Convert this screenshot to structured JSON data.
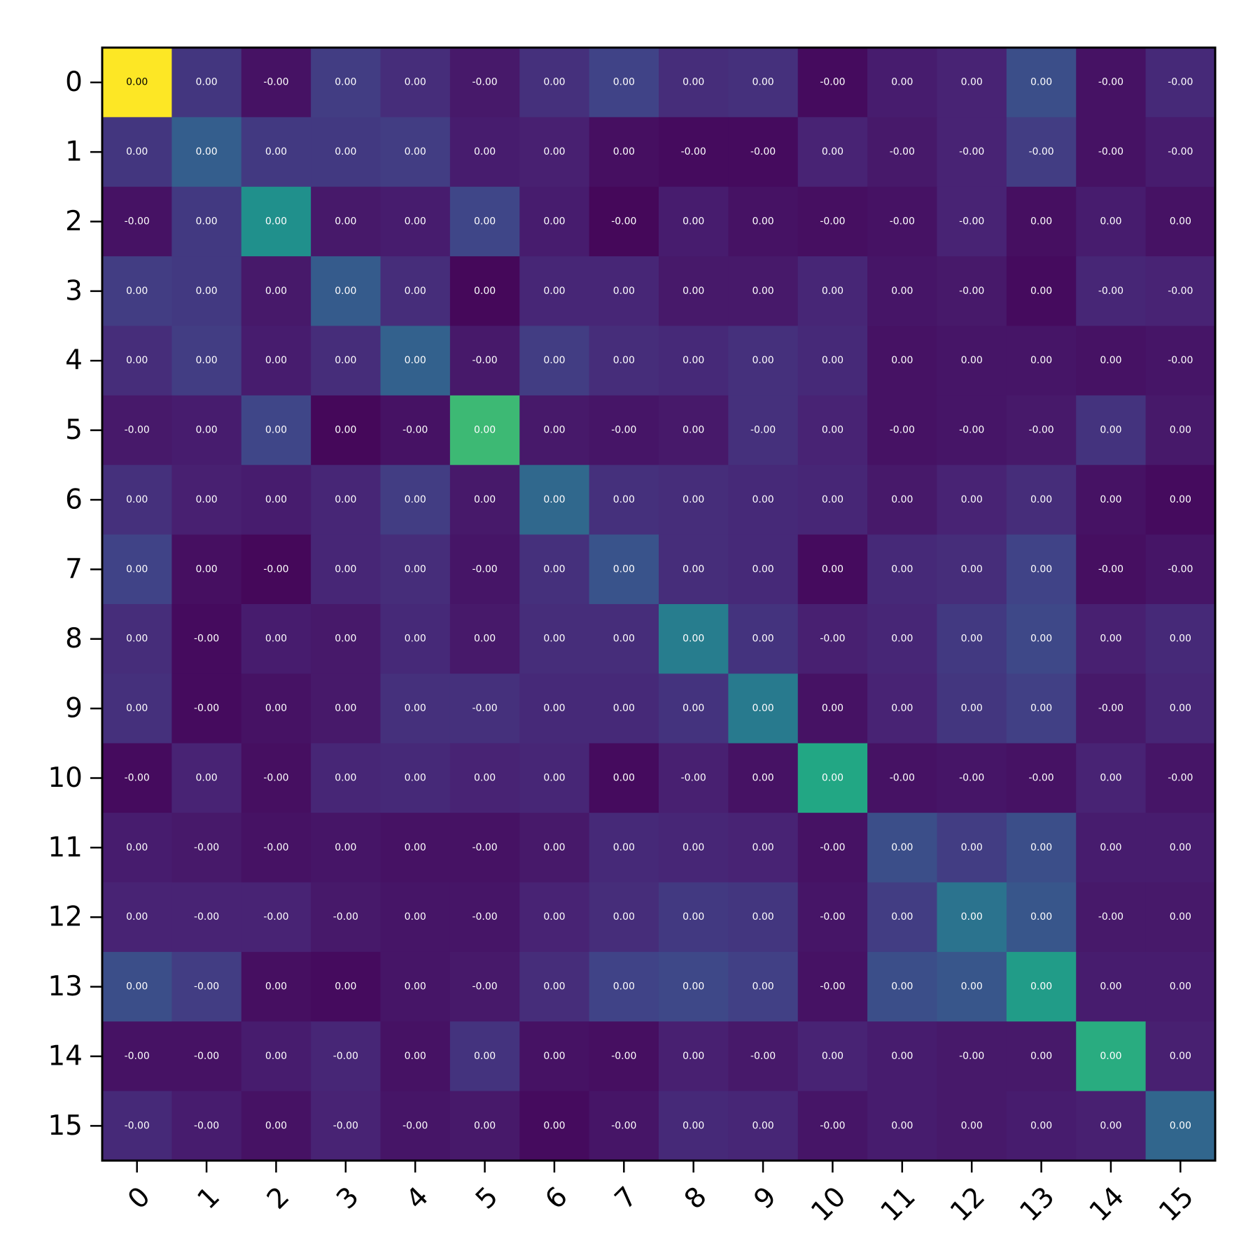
{
  "chart_data": {
    "type": "heatmap",
    "colormap": "viridis",
    "title": "",
    "xlabel": "",
    "ylabel": "",
    "x_ticks": [
      "0",
      "1",
      "2",
      "3",
      "4",
      "5",
      "6",
      "7",
      "8",
      "9",
      "10",
      "11",
      "12",
      "13",
      "14",
      "15"
    ],
    "y_ticks": [
      "0",
      "1",
      "2",
      "3",
      "4",
      "5",
      "6",
      "7",
      "8",
      "9",
      "10",
      "11",
      "12",
      "13",
      "14",
      "15"
    ],
    "color_range": [
      0,
      1
    ],
    "color_intensity": [
      [
        1.0,
        0.16,
        0.05,
        0.18,
        0.13,
        0.07,
        0.14,
        0.2,
        0.13,
        0.14,
        0.03,
        0.08,
        0.1,
        0.24,
        0.05,
        0.12
      ],
      [
        0.16,
        0.3,
        0.17,
        0.17,
        0.18,
        0.08,
        0.09,
        0.04,
        0.03,
        0.03,
        0.1,
        0.07,
        0.1,
        0.18,
        0.05,
        0.08
      ],
      [
        0.05,
        0.17,
        0.5,
        0.07,
        0.08,
        0.21,
        0.08,
        0.02,
        0.08,
        0.05,
        0.04,
        0.05,
        0.1,
        0.04,
        0.08,
        0.05
      ],
      [
        0.18,
        0.17,
        0.07,
        0.29,
        0.13,
        0.02,
        0.11,
        0.11,
        0.07,
        0.07,
        0.11,
        0.06,
        0.07,
        0.03,
        0.11,
        0.1
      ],
      [
        0.13,
        0.18,
        0.08,
        0.13,
        0.31,
        0.07,
        0.18,
        0.13,
        0.12,
        0.14,
        0.12,
        0.05,
        0.06,
        0.06,
        0.05,
        0.06
      ],
      [
        0.07,
        0.08,
        0.21,
        0.02,
        0.05,
        0.68,
        0.07,
        0.06,
        0.07,
        0.14,
        0.1,
        0.05,
        0.06,
        0.07,
        0.15,
        0.07
      ],
      [
        0.14,
        0.09,
        0.08,
        0.11,
        0.18,
        0.07,
        0.34,
        0.14,
        0.13,
        0.12,
        0.11,
        0.07,
        0.1,
        0.13,
        0.05,
        0.03
      ],
      [
        0.2,
        0.04,
        0.02,
        0.11,
        0.13,
        0.06,
        0.14,
        0.26,
        0.13,
        0.12,
        0.03,
        0.12,
        0.13,
        0.2,
        0.04,
        0.06
      ],
      [
        0.13,
        0.03,
        0.08,
        0.07,
        0.12,
        0.07,
        0.13,
        0.13,
        0.42,
        0.15,
        0.09,
        0.11,
        0.17,
        0.22,
        0.09,
        0.12
      ],
      [
        0.14,
        0.03,
        0.05,
        0.07,
        0.14,
        0.14,
        0.12,
        0.12,
        0.15,
        0.41,
        0.05,
        0.1,
        0.16,
        0.19,
        0.07,
        0.11
      ],
      [
        0.03,
        0.1,
        0.04,
        0.11,
        0.12,
        0.1,
        0.11,
        0.03,
        0.09,
        0.05,
        0.6,
        0.05,
        0.06,
        0.05,
        0.1,
        0.06
      ],
      [
        0.08,
        0.07,
        0.05,
        0.06,
        0.05,
        0.05,
        0.07,
        0.12,
        0.11,
        0.1,
        0.05,
        0.24,
        0.18,
        0.24,
        0.08,
        0.08
      ],
      [
        0.1,
        0.1,
        0.1,
        0.07,
        0.06,
        0.06,
        0.1,
        0.13,
        0.17,
        0.16,
        0.06,
        0.18,
        0.38,
        0.27,
        0.07,
        0.07
      ],
      [
        0.24,
        0.18,
        0.04,
        0.03,
        0.06,
        0.07,
        0.13,
        0.2,
        0.22,
        0.19,
        0.05,
        0.24,
        0.27,
        0.55,
        0.08,
        0.08
      ],
      [
        0.05,
        0.05,
        0.08,
        0.11,
        0.05,
        0.15,
        0.05,
        0.04,
        0.09,
        0.07,
        0.1,
        0.08,
        0.07,
        0.07,
        0.62,
        0.09
      ],
      [
        0.12,
        0.08,
        0.05,
        0.1,
        0.06,
        0.07,
        0.03,
        0.06,
        0.12,
        0.11,
        0.06,
        0.08,
        0.07,
        0.08,
        0.09,
        0.33
      ]
    ],
    "annotations": [
      [
        "0.00",
        "0.00",
        "-0.00",
        "0.00",
        "0.00",
        "-0.00",
        "0.00",
        "0.00",
        "0.00",
        "0.00",
        "-0.00",
        "0.00",
        "0.00",
        "0.00",
        "-0.00",
        "-0.00"
      ],
      [
        "0.00",
        "0.00",
        "0.00",
        "0.00",
        "0.00",
        "0.00",
        "0.00",
        "0.00",
        "-0.00",
        "-0.00",
        "0.00",
        "-0.00",
        "-0.00",
        "-0.00",
        "-0.00",
        "-0.00"
      ],
      [
        "-0.00",
        "0.00",
        "0.00",
        "0.00",
        "0.00",
        "0.00",
        "0.00",
        "-0.00",
        "0.00",
        "0.00",
        "-0.00",
        "-0.00",
        "-0.00",
        "0.00",
        "0.00",
        "0.00"
      ],
      [
        "0.00",
        "0.00",
        "0.00",
        "0.00",
        "0.00",
        "0.00",
        "0.00",
        "0.00",
        "0.00",
        "0.00",
        "0.00",
        "0.00",
        "-0.00",
        "0.00",
        "-0.00",
        "-0.00"
      ],
      [
        "0.00",
        "0.00",
        "0.00",
        "0.00",
        "0.00",
        "-0.00",
        "0.00",
        "0.00",
        "0.00",
        "0.00",
        "0.00",
        "0.00",
        "0.00",
        "0.00",
        "0.00",
        "-0.00"
      ],
      [
        "-0.00",
        "0.00",
        "0.00",
        "0.00",
        "-0.00",
        "0.00",
        "0.00",
        "-0.00",
        "0.00",
        "-0.00",
        "0.00",
        "-0.00",
        "-0.00",
        "-0.00",
        "0.00",
        "0.00"
      ],
      [
        "0.00",
        "0.00",
        "0.00",
        "0.00",
        "0.00",
        "0.00",
        "0.00",
        "0.00",
        "0.00",
        "0.00",
        "0.00",
        "0.00",
        "0.00",
        "0.00",
        "0.00",
        "0.00"
      ],
      [
        "0.00",
        "0.00",
        "-0.00",
        "0.00",
        "0.00",
        "-0.00",
        "0.00",
        "0.00",
        "0.00",
        "0.00",
        "0.00",
        "0.00",
        "0.00",
        "0.00",
        "-0.00",
        "-0.00"
      ],
      [
        "0.00",
        "-0.00",
        "0.00",
        "0.00",
        "0.00",
        "0.00",
        "0.00",
        "0.00",
        "0.00",
        "0.00",
        "-0.00",
        "0.00",
        "0.00",
        "0.00",
        "0.00",
        "0.00"
      ],
      [
        "0.00",
        "-0.00",
        "0.00",
        "0.00",
        "0.00",
        "-0.00",
        "0.00",
        "0.00",
        "0.00",
        "0.00",
        "0.00",
        "0.00",
        "0.00",
        "0.00",
        "-0.00",
        "0.00"
      ],
      [
        "-0.00",
        "0.00",
        "-0.00",
        "0.00",
        "0.00",
        "0.00",
        "0.00",
        "0.00",
        "-0.00",
        "0.00",
        "0.00",
        "-0.00",
        "-0.00",
        "-0.00",
        "0.00",
        "-0.00"
      ],
      [
        "0.00",
        "-0.00",
        "-0.00",
        "0.00",
        "0.00",
        "-0.00",
        "0.00",
        "0.00",
        "0.00",
        "0.00",
        "-0.00",
        "0.00",
        "0.00",
        "0.00",
        "0.00",
        "0.00"
      ],
      [
        "0.00",
        "-0.00",
        "-0.00",
        "-0.00",
        "0.00",
        "-0.00",
        "0.00",
        "0.00",
        "0.00",
        "0.00",
        "-0.00",
        "0.00",
        "0.00",
        "0.00",
        "-0.00",
        "0.00"
      ],
      [
        "0.00",
        "-0.00",
        "0.00",
        "0.00",
        "0.00",
        "-0.00",
        "0.00",
        "0.00",
        "0.00",
        "0.00",
        "-0.00",
        "0.00",
        "0.00",
        "0.00",
        "0.00",
        "0.00"
      ],
      [
        "-0.00",
        "-0.00",
        "0.00",
        "-0.00",
        "0.00",
        "0.00",
        "0.00",
        "-0.00",
        "0.00",
        "-0.00",
        "0.00",
        "0.00",
        "-0.00",
        "0.00",
        "0.00",
        "0.00"
      ],
      [
        "-0.00",
        "-0.00",
        "0.00",
        "-0.00",
        "-0.00",
        "0.00",
        "0.00",
        "-0.00",
        "0.00",
        "0.00",
        "-0.00",
        "0.00",
        "0.00",
        "0.00",
        "0.00",
        "0.00"
      ]
    ],
    "grid": false,
    "legend": "none"
  }
}
